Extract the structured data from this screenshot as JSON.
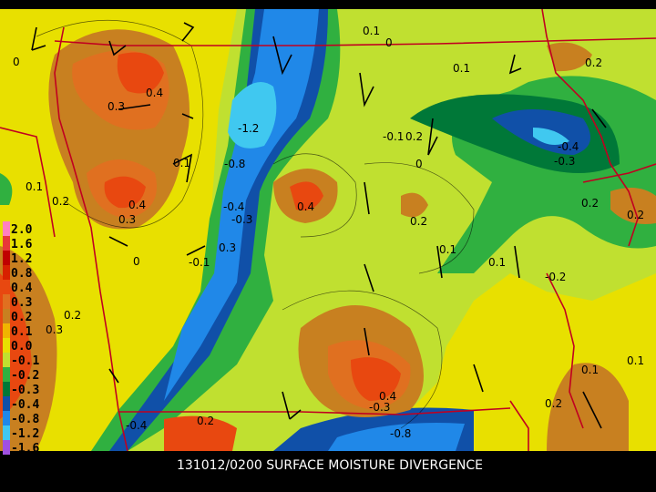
{
  "caption": "131012/0200 SURFACE MOISTURE DIVERGENCE",
  "legend": [
    {
      "label": "2.0",
      "color": "#ff80c0"
    },
    {
      "label": "1.6",
      "color": "#e83838"
    },
    {
      "label": "1.2",
      "color": "#c00000"
    },
    {
      "label": "0.8",
      "color": "#d82000"
    },
    {
      "label": "0.4",
      "color": "#e84810"
    },
    {
      "label": "0.3",
      "color": "#e07020"
    },
    {
      "label": "0.2",
      "color": "#c88020"
    },
    {
      "label": "0.1",
      "color": "#f0b400"
    },
    {
      "label": "0.0",
      "color": "#e8e000"
    },
    {
      "label": "-0.1",
      "color": "#c0e030"
    },
    {
      "label": "-0.2",
      "color": "#30b040"
    },
    {
      "label": "-0.3",
      "color": "#007838"
    },
    {
      "label": "-0.4",
      "color": "#1050a8"
    },
    {
      "label": "-0.8",
      "color": "#2088e8"
    },
    {
      "label": "-1.2",
      "color": "#40c8f0"
    },
    {
      "label": "-1.6",
      "color": "#a050e0"
    }
  ],
  "contour_labels": [
    "0.1",
    "0",
    "0.1",
    "0.2",
    "0",
    "0.4",
    "0.3",
    "-1.2",
    "-0.8",
    "0.1",
    "-0.1",
    "0.2",
    "0",
    "-0.4",
    "-0.3",
    "0.1",
    "0.2",
    "0.2",
    "0.4",
    "0.3",
    "-0.4",
    "-0.3",
    "0.4",
    "0.2",
    "0.1",
    "-0.2",
    "0.3",
    "-0.1",
    "0.1",
    "0.2",
    "0.4",
    "-0.3",
    "-0.8",
    "0.1",
    "0.2",
    "-0.4",
    "0.2",
    "0.1",
    "0.2",
    "0.3",
    "0"
  ]
}
